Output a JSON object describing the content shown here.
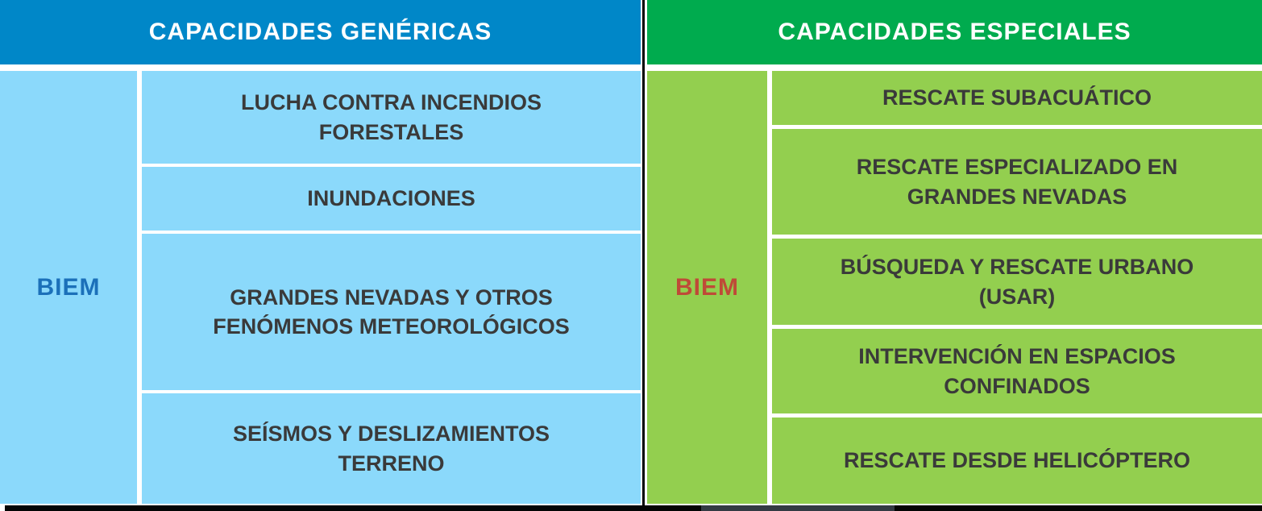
{
  "figure": {
    "left_table": {
      "header": "CAPACIDADES GENÉRICAS",
      "row_label": "BIEM",
      "rows": [
        "LUCHA CONTRA INCENDIOS FORESTALES",
        "INUNDACIONES",
        "GRANDES NEVADAS Y OTROS FENÓMENOS METEOROLÓGICOS",
        "SEÍSMOS Y DESLIZAMIENTOS TERRENO"
      ]
    },
    "right_table": {
      "header": "CAPACIDADES ESPECIALES",
      "row_label": "BIEM",
      "rows": [
        "RESCATE SUBACUÁTICO",
        "RESCATE ESPECIALIZADO EN GRANDES NEVADAS",
        "BÚSQUEDA Y RESCATE URBANO (USAR)",
        "INTERVENCIÓN EN ESPACIOS CONFINADOS",
        "RESCATE DESDE HELICÓPTERO"
      ]
    },
    "colors": {
      "header_blue": "#0087C8",
      "cell_blue": "#8BD9FB",
      "header_green": "#00AB4E",
      "cell_green": "#93CF4F",
      "biem_label_blue": "#1B70B9",
      "biem_label_red": "#BF4A37",
      "row_text": "#3A3A3A",
      "header_text": "#FFFFFF"
    }
  }
}
